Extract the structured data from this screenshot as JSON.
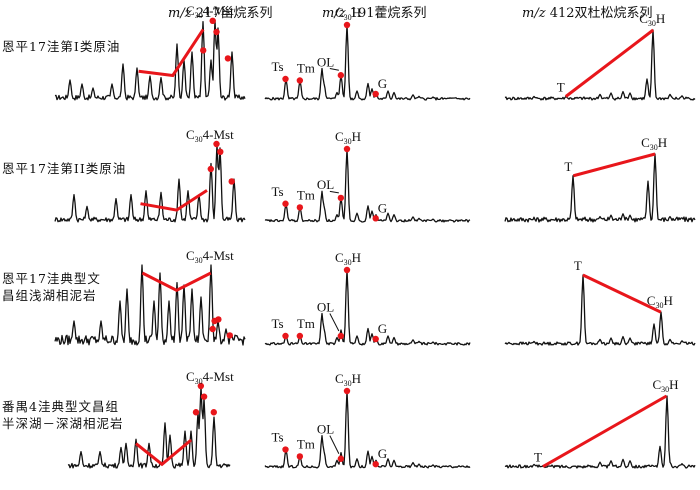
{
  "chart_data": {
    "type": "line",
    "title": "",
    "columns": [
      {
        "key": "m217",
        "title_prefix": "m/z",
        "title_mass": "217",
        "title_suffix": "甾烷系列",
        "series_name": "Steranes"
      },
      {
        "key": "m191",
        "title_prefix": "m/z",
        "title_mass": "191",
        "title_suffix": "藿烷系列",
        "series_name": "Hopanes"
      },
      {
        "key": "m412",
        "title_prefix": "m/z",
        "title_mass": "412",
        "title_suffix": "双杜松烷系列",
        "series_name": "Bicadinanes"
      }
    ],
    "rows": [
      {
        "label_lines": [
          "恩平17洼第I类原油"
        ],
        "m217": {
          "annotation": "C30 4-Mst",
          "trend": "low-dip-high",
          "trend_points": [
            [
              0.44,
              0.4
            ],
            [
              0.62,
              0.34
            ],
            [
              0.78,
              0.98
            ]
          ],
          "red_dots": 4
        },
        "m191": {
          "peaks": {
            "Ts": 0.28,
            "Tm": 0.26,
            "OL": 0.33,
            "C30H": 1.0,
            "G": 0.08
          }
        },
        "m412": {
          "peaks": {
            "T": 0.05,
            "C30H": 1.0
          },
          "trend": "rising"
        }
      },
      {
        "label_lines": [
          "恩平17洼第II类原油"
        ],
        "m217": {
          "annotation": "C30 4-Mst",
          "trend": "low-dip-high",
          "trend_points": [
            [
              0.45,
              0.26
            ],
            [
              0.64,
              0.17
            ],
            [
              0.8,
              0.45
            ]
          ],
          "red_dots": 4
        },
        "m191": {
          "peaks": {
            "Ts": 0.25,
            "Tm": 0.2,
            "OL": 0.33,
            "C30H": 1.0,
            "G": 0.05
          }
        },
        "m412": {
          "peaks": {
            "T": 0.68,
            "C30H": 1.0
          },
          "trend": "slightly-rising"
        }
      },
      {
        "label_lines": [
          "恩平17洼典型文",
          "昌组浅湖相泥岩"
        ],
        "m217": {
          "annotation": "C30 4-Mst",
          "trend": "high-dip-high",
          "trend_points": [
            [
              0.46,
              1.0
            ],
            [
              0.64,
              0.76
            ],
            [
              0.82,
              1.0
            ]
          ],
          "red_dots": 4
        },
        "m191": {
          "peaks": {
            "Ts": 0.12,
            "Tm": 0.12,
            "OL": 0.12,
            "C30H": 1.0,
            "G": 0.08
          }
        },
        "m412": {
          "peaks": {
            "T": 1.0,
            "C30H": 0.47
          },
          "trend": "falling"
        }
      },
      {
        "label_lines": [
          "番禺4洼典型文昌组",
          "半深湖－深湖相泥岩"
        ],
        "m217": {
          "annotation": "C30 4-Mst",
          "trend": "mid-dip-mid",
          "trend_points": [
            [
              0.42,
              0.33
            ],
            [
              0.58,
              0.05
            ],
            [
              0.76,
              0.38
            ]
          ],
          "red_dots": 4
        },
        "m191": {
          "peaks": {
            "Ts": 0.24,
            "Tm": 0.15,
            "OL": 0.1,
            "C30H": 1.0,
            "G": 0.05
          }
        },
        "m412": {
          "peaks": {
            "T": 0.02,
            "C30H": 1.0
          },
          "trend": "rising"
        }
      }
    ],
    "peak_labels": {
      "ts": "Ts",
      "tm": "Tm",
      "ol": "OL",
      "g": "G",
      "t": "T",
      "c30h_main": "C",
      "c30h_sub": "30",
      "c30h_tail": "H",
      "mst_main": "C",
      "mst_sub": "30",
      "mst_tail": "4-Mst"
    },
    "colors": {
      "trace": "#111111",
      "trend": "#e8161b",
      "marker": "#e8161b"
    },
    "xlabel": "",
    "ylabel": "",
    "grid": false,
    "legend": "none"
  }
}
